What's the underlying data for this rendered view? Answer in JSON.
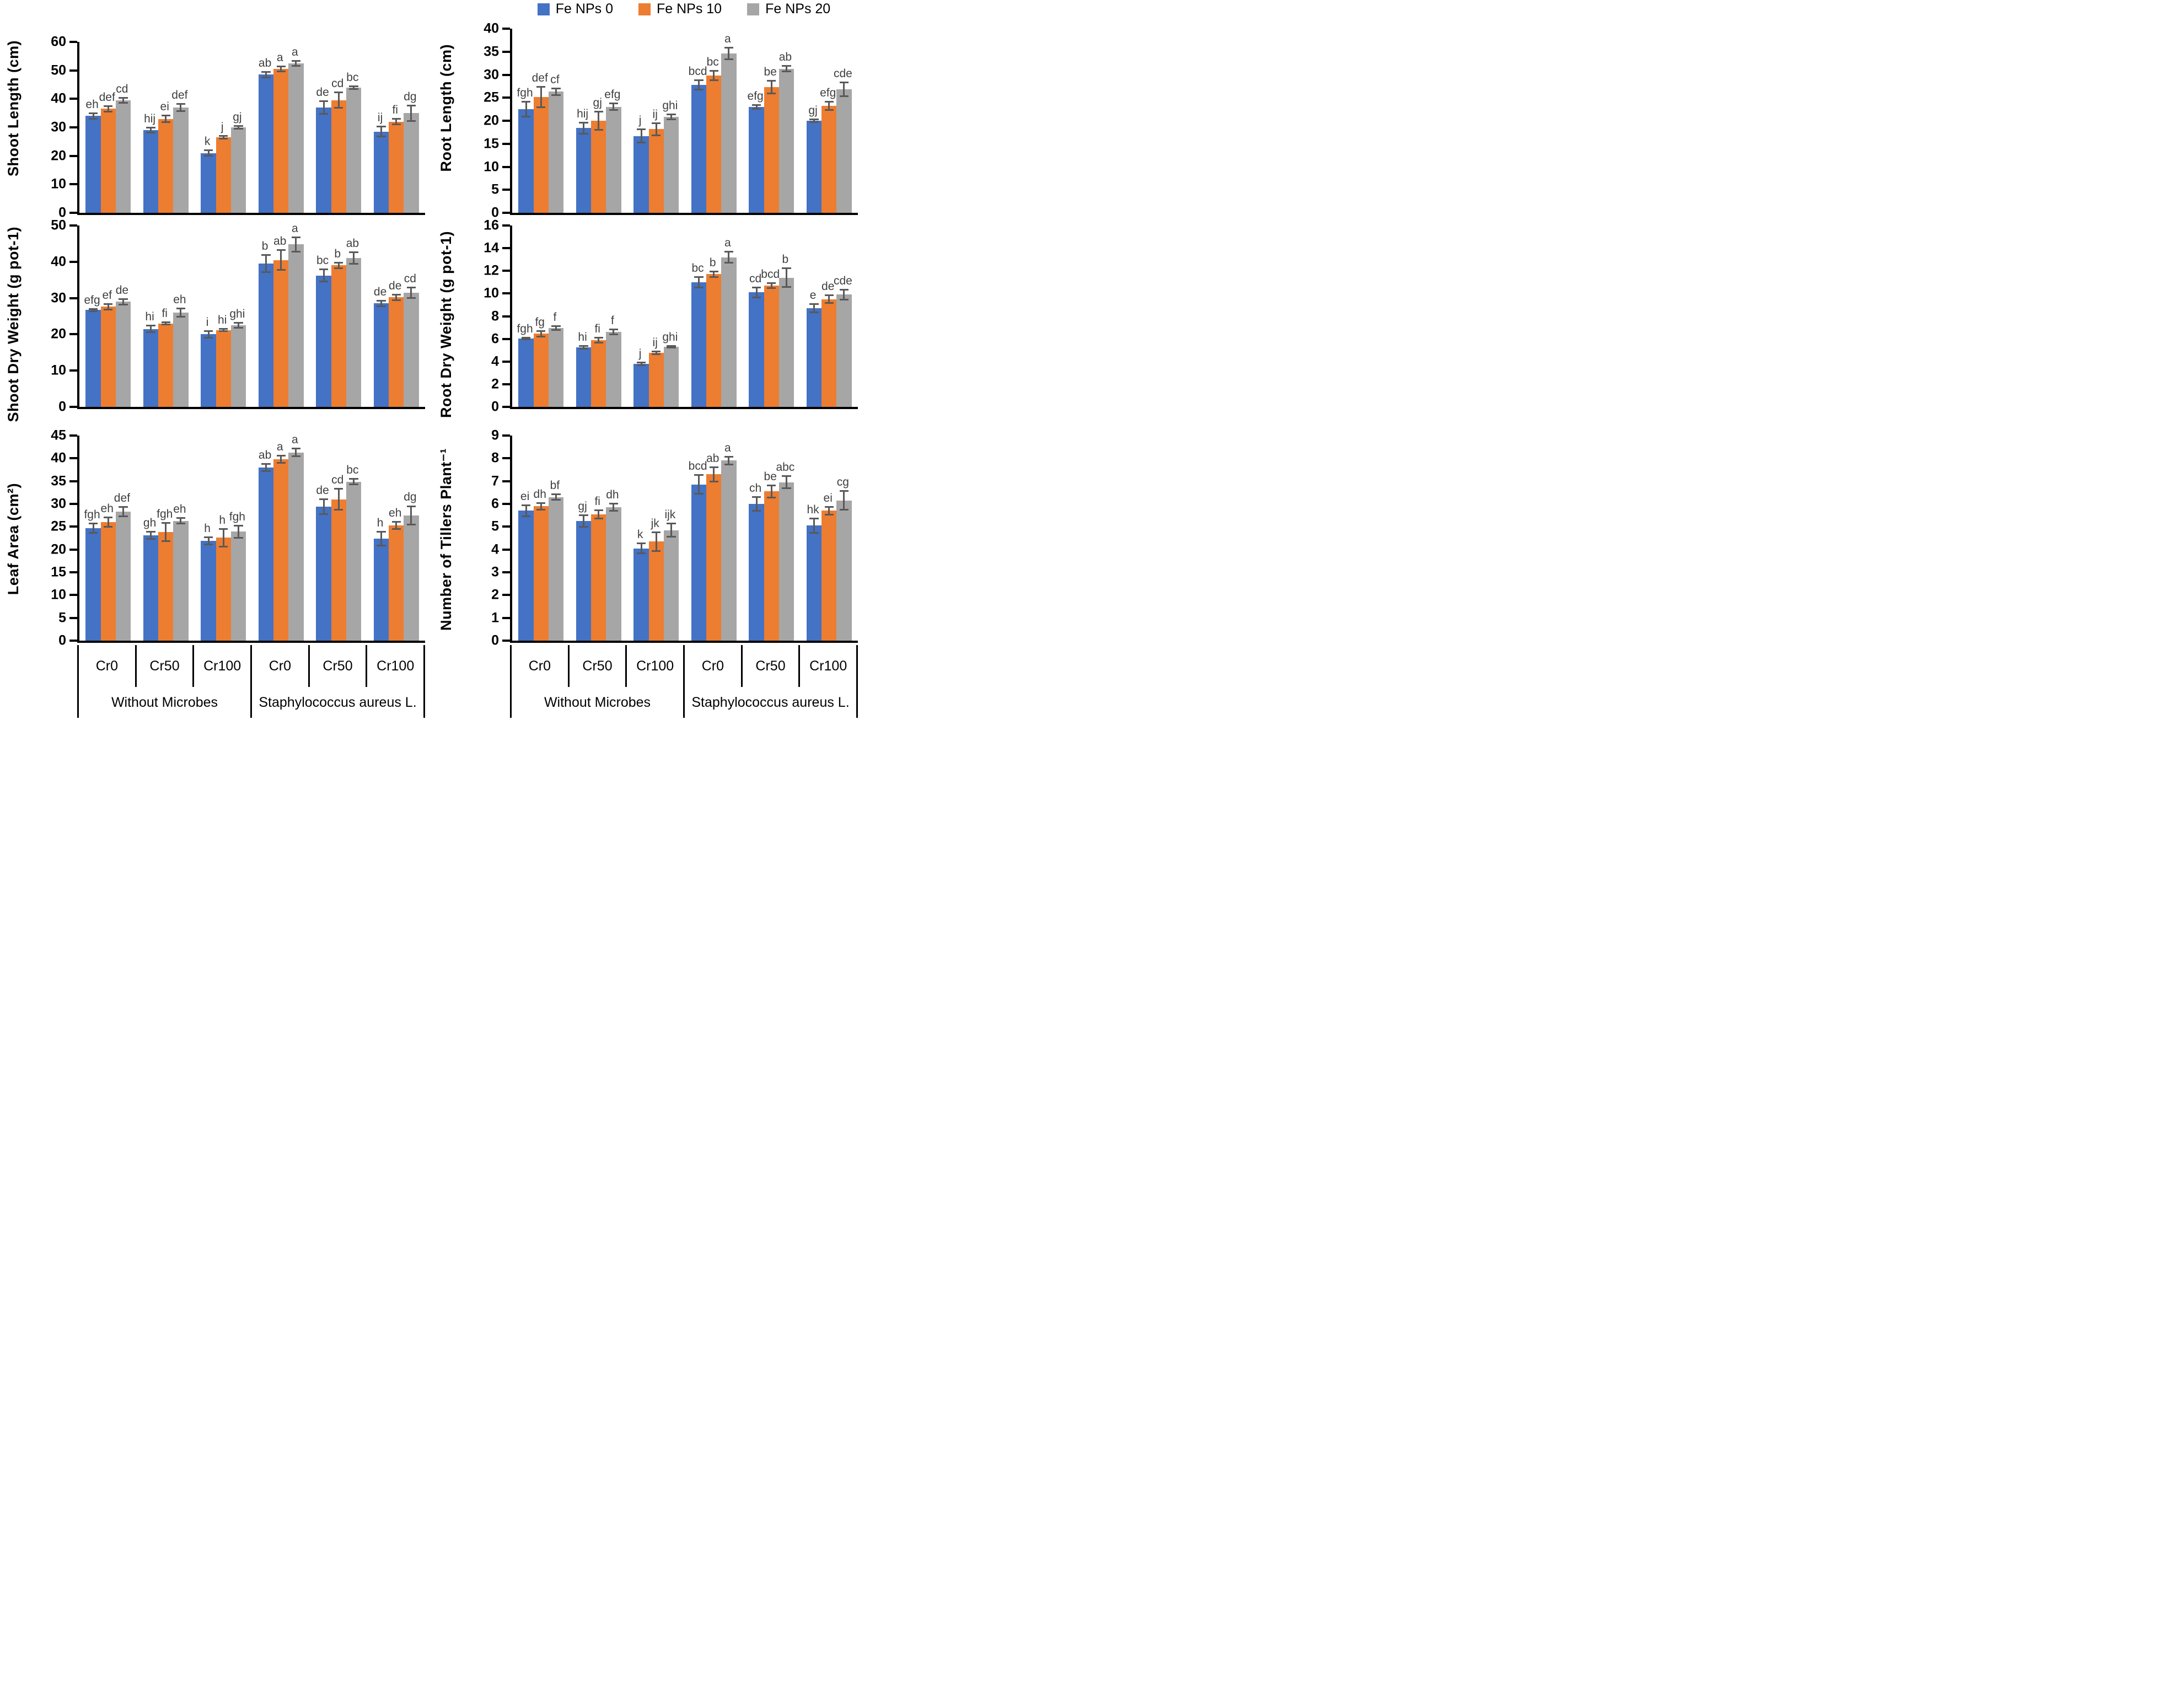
{
  "figure": {
    "legend": [
      {
        "label": "Fe NPs 0",
        "color": "#4472C4"
      },
      {
        "label": "Fe NPs 10",
        "color": "#ED7D31"
      },
      {
        "label": "Fe NPs 20",
        "color": "#A6A6A6"
      }
    ],
    "colors": {
      "error_bar": "#595959",
      "letter": "#3f3f3f",
      "axis": "#000000"
    },
    "x_categories": [
      "Cr0",
      "Cr50",
      "Cr100",
      "Cr0",
      "Cr50",
      "Cr100"
    ],
    "x_groups": [
      "Without Microbes",
      "Staphylococcus aureus L."
    ]
  },
  "chart_data": [
    {
      "id": "shoot-length",
      "type": "bar",
      "ylabel": "Shoot Length (cm)",
      "ylim": [
        0,
        60
      ],
      "ystep": 10,
      "categories": [
        "Cr0",
        "Cr50",
        "Cr100",
        "Cr0",
        "Cr50",
        "Cr100"
      ],
      "group_labels": [
        "Without Microbes",
        "Staphylococcus aureus L."
      ],
      "legend_position": "none",
      "grid": false,
      "series": [
        {
          "name": "Fe NPs 0",
          "color": "#4472C4",
          "values": [
            34,
            29,
            21,
            48.5,
            37,
            28.5
          ],
          "errors": [
            1.2,
            1.2,
            1.2,
            1.2,
            2.5,
            2
          ],
          "letters": [
            "eh",
            "hij",
            "k",
            "ab",
            "de",
            "ij"
          ]
        },
        {
          "name": "Fe NPs 10",
          "color": "#ED7D31",
          "values": [
            36.5,
            33,
            26.5,
            50.5,
            39.5,
            32
          ],
          "errors": [
            1.3,
            1.5,
            0.8,
            1.2,
            3,
            1.3
          ],
          "letters": [
            "def",
            "ei",
            "j",
            "a",
            "cd",
            "fi"
          ]
        },
        {
          "name": "Fe NPs 20",
          "color": "#A6A6A6",
          "values": [
            39.5,
            37,
            30,
            52.5,
            44,
            35
          ],
          "errors": [
            1.2,
            1.5,
            0.7,
            1.2,
            0.8,
            3
          ],
          "letters": [
            "cd",
            "def",
            "gj",
            "a",
            "bc",
            "dg"
          ]
        }
      ]
    },
    {
      "id": "root-length",
      "type": "bar",
      "ylabel": "Root Length (cm)",
      "ylim": [
        0,
        40
      ],
      "ystep": 5,
      "categories": [
        "Cr0",
        "Cr50",
        "Cr100",
        "Cr0",
        "Cr50",
        "Cr100"
      ],
      "group_labels": [
        "Without Microbes",
        "Staphylococcus aureus L."
      ],
      "legend_position": "top",
      "grid": false,
      "series": [
        {
          "name": "Fe NPs 0",
          "color": "#4472C4",
          "values": [
            22.5,
            18.4,
            16.7,
            27.8,
            23,
            20
          ],
          "errors": [
            1.8,
            1.4,
            1.6,
            1.2,
            0.6,
            0.5
          ],
          "letters": [
            "fgh",
            "hij",
            "j",
            "bcd",
            "efg",
            "gj"
          ]
        },
        {
          "name": "Fe NPs 10",
          "color": "#ED7D31",
          "values": [
            25.2,
            20,
            18.2,
            29.8,
            27.3,
            23.2
          ],
          "errors": [
            2.4,
            2.1,
            1.5,
            1.2,
            1.6,
            1.1
          ],
          "letters": [
            "def",
            "gj",
            "ij",
            "bc",
            "be",
            "efg"
          ]
        },
        {
          "name": "Fe NPs 20",
          "color": "#A6A6A6",
          "values": [
            26.3,
            23,
            20.8,
            34.6,
            31.3,
            26.8
          ],
          "errors": [
            0.9,
            0.9,
            0.7,
            1.4,
            0.8,
            1.7
          ],
          "letters": [
            "cf",
            "efg",
            "ghi",
            "a",
            "ab",
            "cde"
          ]
        }
      ]
    },
    {
      "id": "shoot-dry-weight",
      "type": "bar",
      "ylabel": "Shoot Dry Weight (g pot-1)",
      "ylim": [
        0,
        50
      ],
      "ystep": 10,
      "categories": [
        "Cr0",
        "Cr50",
        "Cr100",
        "Cr0",
        "Cr50",
        "Cr100"
      ],
      "group_labels": [
        "Without Microbes",
        "Staphylococcus aureus L."
      ],
      "legend_position": "none",
      "grid": false,
      "series": [
        {
          "name": "Fe NPs 0",
          "color": "#4472C4",
          "values": [
            26.7,
            21.5,
            20,
            39.5,
            36.2,
            28.5
          ],
          "errors": [
            0.5,
            1.1,
            1.1,
            2.6,
            1.9,
            1
          ],
          "letters": [
            "efg",
            "hi",
            "i",
            "b",
            "bc",
            "de"
          ]
        },
        {
          "name": "Fe NPs 10",
          "color": "#ED7D31",
          "values": [
            27.6,
            23,
            21.2,
            40.5,
            39,
            30.2
          ],
          "errors": [
            1,
            0.5,
            0.5,
            3,
            1,
            1
          ],
          "letters": [
            "ef",
            "fi",
            "hi",
            "ab",
            "b",
            "de"
          ]
        },
        {
          "name": "Fe NPs 20",
          "color": "#A6A6A6",
          "values": [
            29,
            26,
            22.5,
            44.8,
            41,
            31.5
          ],
          "errors": [
            1,
            1.4,
            0.9,
            2.2,
            1.8,
            1.7
          ],
          "letters": [
            "de",
            "eh",
            "ghi",
            "a",
            "ab",
            "cd"
          ]
        }
      ]
    },
    {
      "id": "root-dry-weight",
      "type": "bar",
      "ylabel": "Root Dry Weight (g pot-1)",
      "ylim": [
        0,
        16
      ],
      "ystep": 2,
      "categories": [
        "Cr0",
        "Cr50",
        "Cr100",
        "Cr0",
        "Cr50",
        "Cr100"
      ],
      "group_labels": [
        "Without Microbes",
        "Staphylococcus aureus L."
      ],
      "legend_position": "none",
      "grid": false,
      "series": [
        {
          "name": "Fe NPs 0",
          "color": "#4472C4",
          "values": [
            6.05,
            5.25,
            3.8,
            11,
            10.1,
            8.7
          ],
          "errors": [
            0.15,
            0.2,
            0.2,
            0.55,
            0.5,
            0.45
          ],
          "letters": [
            "fgh",
            "hi",
            "j",
            "bc",
            "cd",
            "e"
          ]
        },
        {
          "name": "Fe NPs 10",
          "color": "#ED7D31",
          "values": [
            6.45,
            5.9,
            4.75,
            11.7,
            10.7,
            9.5
          ],
          "errors": [
            0.3,
            0.3,
            0.2,
            0.3,
            0.3,
            0.4
          ],
          "letters": [
            "fg",
            "fi",
            "ij",
            "b",
            "bcd",
            "de"
          ]
        },
        {
          "name": "Fe NPs 20",
          "color": "#A6A6A6",
          "values": [
            6.95,
            6.6,
            5.3,
            13.2,
            11.4,
            9.9
          ],
          "errors": [
            0.25,
            0.3,
            0.15,
            0.55,
            0.9,
            0.5
          ],
          "letters": [
            "f",
            "f",
            "ghi",
            "a",
            "b",
            "cde"
          ]
        }
      ]
    },
    {
      "id": "leaf-area",
      "type": "bar",
      "ylabel": "Leaf Area (cm²)",
      "ylim": [
        0,
        45
      ],
      "ystep": 5,
      "categories": [
        "Cr0",
        "Cr50",
        "Cr100",
        "Cr0",
        "Cr50",
        "Cr100"
      ],
      "group_labels": [
        "Without Microbes",
        "Staphylococcus aureus L."
      ],
      "legend_position": "none",
      "grid": false,
      "series": [
        {
          "name": "Fe NPs 0",
          "color": "#4472C4",
          "values": [
            24.7,
            23.1,
            21.9,
            38,
            29.4,
            22.4
          ],
          "errors": [
            1.2,
            1,
            1,
            1,
            1.8,
            1.7
          ],
          "letters": [
            "fgh",
            "gh",
            "h",
            "ab",
            "de",
            "h"
          ]
        },
        {
          "name": "Fe NPs 10",
          "color": "#ED7D31",
          "values": [
            26,
            23.8,
            22.6,
            39.8,
            31,
            25.3
          ],
          "errors": [
            1.2,
            2.2,
            2.1,
            1,
            2.5,
            1
          ],
          "letters": [
            "eh",
            "fgh",
            "h",
            "a",
            "cd",
            "eh"
          ]
        },
        {
          "name": "Fe NPs 20",
          "color": "#A6A6A6",
          "values": [
            28.3,
            26.3,
            23.9,
            41.3,
            34.9,
            27.5
          ],
          "errors": [
            1.2,
            0.8,
            1.5,
            1,
            0.8,
            2.2
          ],
          "letters": [
            "def",
            "eh",
            "fgh",
            "a",
            "bc",
            "dg"
          ]
        }
      ]
    },
    {
      "id": "tillers",
      "type": "bar",
      "ylabel": "Number of Tillers Plant⁻¹",
      "ylim": [
        0,
        9
      ],
      "ystep": 1,
      "categories": [
        "Cr0",
        "Cr50",
        "Cr100",
        "Cr0",
        "Cr50",
        "Cr100"
      ],
      "group_labels": [
        "Without Microbes",
        "Staphylococcus aureus L."
      ],
      "legend_position": "none",
      "grid": false,
      "series": [
        {
          "name": "Fe NPs 0",
          "color": "#4472C4",
          "values": [
            5.7,
            5.25,
            4.05,
            6.85,
            6,
            5.05
          ],
          "errors": [
            0.27,
            0.28,
            0.25,
            0.45,
            0.35,
            0.35
          ],
          "letters": [
            "ei",
            "gj",
            "k",
            "bcd",
            "ch",
            "hk"
          ]
        },
        {
          "name": "Fe NPs 10",
          "color": "#ED7D31",
          "values": [
            5.9,
            5.55,
            4.35,
            7.3,
            6.55,
            5.7
          ],
          "errors": [
            0.18,
            0.22,
            0.45,
            0.35,
            0.3,
            0.2
          ],
          "letters": [
            "dh",
            "fi",
            "jk",
            "ab",
            "be",
            "ei"
          ]
        },
        {
          "name": "Fe NPs 20",
          "color": "#A6A6A6",
          "values": [
            6.3,
            5.85,
            4.85,
            7.9,
            6.95,
            6.15
          ],
          "errors": [
            0.15,
            0.2,
            0.33,
            0.2,
            0.3,
            0.45
          ],
          "letters": [
            "bf",
            "dh",
            "ijk",
            "a",
            "abc",
            "cg"
          ]
        }
      ]
    }
  ]
}
